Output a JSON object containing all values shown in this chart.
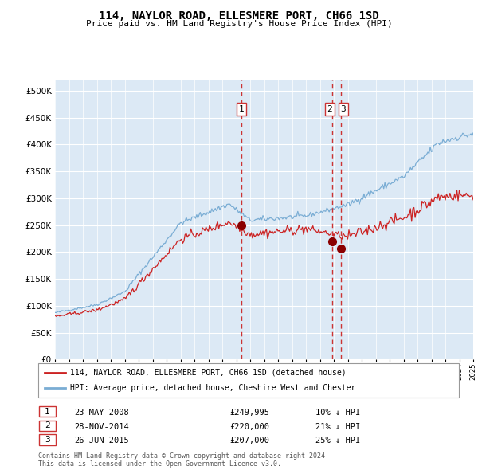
{
  "title": "114, NAYLOR ROAD, ELLESMERE PORT, CH66 1SD",
  "subtitle": "Price paid vs. HM Land Registry's House Price Index (HPI)",
  "plot_bg_color": "#dce9f5",
  "grid_color": "#ffffff",
  "hpi_line_color": "#7aadd4",
  "price_line_color": "#cc2222",
  "sale_marker_color": "#8b0000",
  "sale_dashed_color": "#cc3333",
  "ylim": [
    0,
    520000
  ],
  "yticks": [
    0,
    50000,
    100000,
    150000,
    200000,
    250000,
    300000,
    350000,
    400000,
    450000,
    500000
  ],
  "year_start": 1995,
  "year_end": 2025,
  "sale1_year": 2008.38,
  "sale1_price": 249995,
  "sale2_year": 2014.91,
  "sale2_price": 220000,
  "sale3_year": 2015.49,
  "sale3_price": 207000,
  "legend_label_red": "114, NAYLOR ROAD, ELLESMERE PORT, CH66 1SD (detached house)",
  "legend_label_blue": "HPI: Average price, detached house, Cheshire West and Chester",
  "table_rows": [
    {
      "num": "1",
      "date": "23-MAY-2008",
      "price": "£249,995",
      "pct": "10% ↓ HPI"
    },
    {
      "num": "2",
      "date": "28-NOV-2014",
      "price": "£220,000",
      "pct": "21% ↓ HPI"
    },
    {
      "num": "3",
      "date": "26-JUN-2015",
      "price": "£207,000",
      "pct": "25% ↓ HPI"
    }
  ],
  "footer": "Contains HM Land Registry data © Crown copyright and database right 2024.\nThis data is licensed under the Open Government Licence v3.0."
}
